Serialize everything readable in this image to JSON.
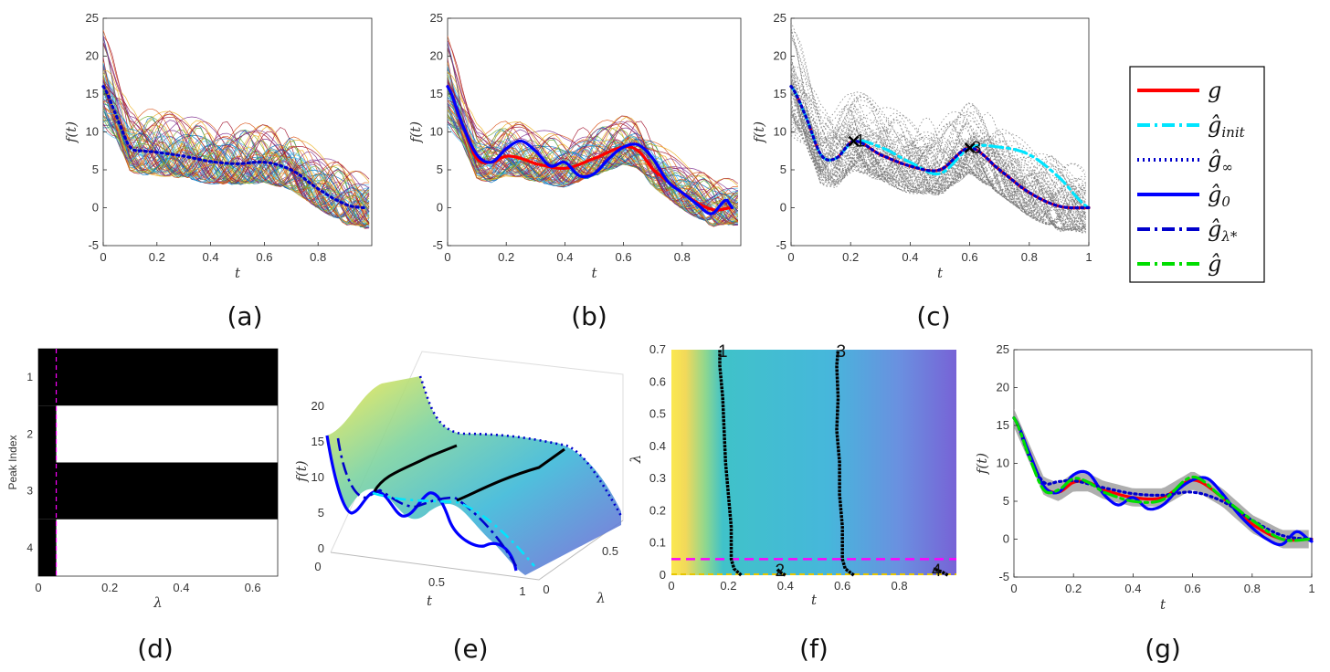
{
  "colors": {
    "g": "#ff0000",
    "g_init": "#00e5ff",
    "g_inf": "#0000cc",
    "g_0": "#0000ff",
    "g_lam": "#0000cc",
    "g_hat": "#00dd00",
    "peak_line": "#ff00ff"
  },
  "legend": {
    "entries": [
      {
        "label": "g",
        "sub": "",
        "style": "solid",
        "color": "#ff0000"
      },
      {
        "label": "ĝ",
        "sub": "init",
        "style": "dashdot",
        "color": "#00e5ff"
      },
      {
        "label": "ĝ",
        "sub": "∞",
        "style": "dotted",
        "color": "#0000cc"
      },
      {
        "label": "ĝ",
        "sub": "0",
        "style": "solid",
        "color": "#0000ff"
      },
      {
        "label": "ĝ",
        "sub": "λ*",
        "style": "dashdot",
        "color": "#0000cc"
      },
      {
        "label": "ĝ",
        "sub": "",
        "style": "dashdot",
        "color": "#00dd00"
      }
    ]
  },
  "captions": [
    "(a)",
    "(b)",
    "(c)",
    "(d)",
    "(e)",
    "(f)",
    "(g)"
  ],
  "chart_data": [
    {
      "panel": "a",
      "type": "line",
      "xlabel": "t",
      "ylabel": "f(t)",
      "xlim": [
        0,
        1
      ],
      "ylim": [
        -5,
        25
      ],
      "xticks": [
        "0",
        "0.2",
        "0.4",
        "0.6",
        "0.8"
      ],
      "yticks": [
        "-5",
        "0",
        "5",
        "10",
        "15",
        "20",
        "25"
      ],
      "series": [
        {
          "style": "dotted",
          "x": [
            0,
            0.05,
            0.1,
            0.15,
            0.2,
            0.3,
            0.4,
            0.5,
            0.6,
            0.7,
            0.8,
            0.9,
            0.97
          ],
          "y": [
            16,
            12,
            8,
            7.5,
            7.3,
            6.8,
            6.1,
            5.8,
            6,
            5,
            2.5,
            0.5,
            0
          ]
        }
      ]
    },
    {
      "panel": "b",
      "type": "line",
      "xlabel": "t",
      "ylabel": "f(t)",
      "xlim": [
        0,
        1
      ],
      "ylim": [
        -5,
        25
      ],
      "xticks": [
        "0",
        "0.2",
        "0.4",
        "0.6",
        "0.8"
      ],
      "yticks": [
        "-5",
        "0",
        "5",
        "10",
        "15",
        "20",
        "25"
      ],
      "series": [
        {
          "style": "solid",
          "x": [
            0,
            0.05,
            0.1,
            0.15,
            0.2,
            0.25,
            0.3,
            0.4,
            0.5,
            0.6,
            0.65,
            0.7,
            0.8,
            0.9,
            0.97
          ],
          "y": [
            16,
            11,
            6.5,
            6,
            6.8,
            6.5,
            5.8,
            5.2,
            6.5,
            8,
            7.5,
            5,
            2,
            -0.2,
            0
          ]
        },
        {
          "style": "solid",
          "x": [
            0,
            0.05,
            0.1,
            0.15,
            0.2,
            0.25,
            0.3,
            0.35,
            0.4,
            0.45,
            0.5,
            0.55,
            0.6,
            0.65,
            0.7,
            0.75,
            0.8,
            0.85,
            0.9,
            0.95,
            0.97
          ],
          "y": [
            16,
            11,
            7,
            6,
            7.8,
            8.8,
            7.5,
            5.5,
            6,
            4.2,
            4.5,
            6.5,
            8,
            8.3,
            6.5,
            3.5,
            2,
            0.5,
            -0.8,
            1,
            0
          ]
        }
      ]
    },
    {
      "panel": "c",
      "type": "line",
      "xlabel": "t",
      "ylabel": "f(t)",
      "xlim": [
        0,
        1
      ],
      "ylim": [
        -5,
        25
      ],
      "xticks": [
        "0",
        "0.2",
        "0.4",
        "0.6",
        "0.8",
        "1"
      ],
      "yticks": [
        "-5",
        "0",
        "5",
        "10",
        "15",
        "20",
        "25"
      ],
      "annotations": [
        {
          "text": "1",
          "x": 0.21,
          "y": 8.8
        },
        {
          "text": "3",
          "x": 0.6,
          "y": 7.9
        }
      ],
      "series": [
        {
          "style": "solid",
          "x": [
            0,
            0.05,
            0.1,
            0.15,
            0.21,
            0.3,
            0.4,
            0.5,
            0.6,
            0.7,
            0.8,
            0.9,
            1
          ],
          "y": [
            16,
            12,
            7,
            6.5,
            8.8,
            7,
            5.5,
            5,
            7.9,
            5,
            2,
            0.2,
            0
          ]
        },
        {
          "style": "dashdot",
          "x": [
            0,
            0.05,
            0.1,
            0.15,
            0.21,
            0.3,
            0.4,
            0.5,
            0.6,
            0.7,
            0.8,
            0.9,
            1
          ],
          "y": [
            16,
            12,
            7,
            6.5,
            8.8,
            8,
            6,
            4.5,
            7.9,
            8,
            7,
            4,
            0
          ]
        },
        {
          "style": "dotted",
          "x": [
            0,
            0.05,
            0.1,
            0.15,
            0.21,
            0.3,
            0.4,
            0.5,
            0.6,
            0.7,
            0.8,
            0.9,
            1
          ],
          "y": [
            16,
            12,
            7,
            6.5,
            8.8,
            7,
            5.5,
            5,
            7.9,
            5,
            2,
            0.2,
            0
          ]
        }
      ]
    },
    {
      "panel": "d",
      "type": "heatmap",
      "xlabel": "λ",
      "ylabel": "Peak Index",
      "xlim": [
        0,
        0.67
      ],
      "xticks": [
        "0",
        "0.2",
        "0.4",
        "0.6"
      ],
      "yticks": [
        "1",
        "2",
        "3",
        "4"
      ],
      "rows": [
        {
          "peak": 1,
          "black_until": 0.67
        },
        {
          "peak": 2,
          "black_until": 0.05
        },
        {
          "peak": 3,
          "black_until": 0.67
        },
        {
          "peak": 4,
          "black_until": 0.05
        }
      ],
      "lambda_star": 0.05
    },
    {
      "panel": "e",
      "type": "area",
      "xlabel": "t",
      "ylabel": "f(t)",
      "zlabel": "λ",
      "zticks": [
        "0",
        "5",
        "10",
        "15",
        "20"
      ],
      "xticks": [
        "0",
        "0.5",
        "1"
      ],
      "lticks": [
        "0",
        "0.5"
      ]
    },
    {
      "panel": "f",
      "type": "heatmap",
      "xlabel": "t",
      "ylabel": "λ",
      "xlim": [
        0,
        1
      ],
      "ylim": [
        0,
        0.7
      ],
      "xticks": [
        "0",
        "0.2",
        "0.4",
        "0.6",
        "0.8"
      ],
      "yticks": [
        "0",
        "0.1",
        "0.2",
        "0.3",
        "0.4",
        "0.5",
        "0.6",
        "0.7"
      ],
      "lambda_star": 0.05,
      "ridges": [
        {
          "label": "1",
          "t": [
            0.245,
            0.22,
            0.21,
            0.21,
            0.2,
            0.19,
            0.185,
            0.18,
            0.17,
            0.17
          ],
          "lambda": [
            0,
            0.02,
            0.05,
            0.15,
            0.25,
            0.35,
            0.45,
            0.55,
            0.65,
            0.7
          ]
        },
        {
          "label": "2",
          "t": [
            0.4,
            0.38,
            0.37
          ],
          "lambda": [
            0,
            0.01,
            0.02
          ]
        },
        {
          "label": "3",
          "t": [
            0.64,
            0.61,
            0.6,
            0.6,
            0.59,
            0.59,
            0.58,
            0.585,
            0.58,
            0.585
          ],
          "lambda": [
            0,
            0.02,
            0.05,
            0.15,
            0.25,
            0.35,
            0.45,
            0.55,
            0.65,
            0.7
          ]
        },
        {
          "label": "4",
          "t": [
            0.97,
            0.95,
            0.92
          ],
          "lambda": [
            0,
            0.01,
            0.02
          ]
        }
      ]
    },
    {
      "panel": "g",
      "type": "line",
      "xlabel": "t",
      "ylabel": "f(t)",
      "xlim": [
        0,
        1
      ],
      "ylim": [
        -5,
        25
      ],
      "xticks": [
        "0",
        "0.2",
        "0.4",
        "0.6",
        "0.8",
        "1"
      ],
      "yticks": [
        "-5",
        "0",
        "5",
        "10",
        "15",
        "20",
        "25"
      ],
      "series": [
        {
          "style": "solid",
          "color": "#ff0000",
          "x": [
            0,
            0.05,
            0.1,
            0.15,
            0.2,
            0.25,
            0.3,
            0.4,
            0.5,
            0.6,
            0.7,
            0.8,
            0.9,
            1
          ],
          "y": [
            16,
            11.5,
            7,
            6.2,
            7.5,
            7.5,
            6.5,
            5.5,
            5.5,
            7.8,
            5.5,
            2,
            0,
            0
          ]
        },
        {
          "style": "solid",
          "color": "#0000ff",
          "x": [
            0,
            0.05,
            0.1,
            0.15,
            0.2,
            0.25,
            0.3,
            0.35,
            0.4,
            0.45,
            0.5,
            0.55,
            0.6,
            0.65,
            0.7,
            0.75,
            0.8,
            0.85,
            0.9,
            0.95,
            1
          ],
          "y": [
            16,
            11.5,
            7,
            6.2,
            8.5,
            8.7,
            6,
            4.5,
            5.5,
            4,
            4.5,
            6.5,
            7.8,
            8,
            6,
            3.5,
            1.5,
            0,
            -0.7,
            1,
            -0.3
          ]
        },
        {
          "style": "dotted",
          "color": "#0000cc",
          "x": [
            0,
            0.05,
            0.1,
            0.15,
            0.2,
            0.3,
            0.4,
            0.5,
            0.6,
            0.7,
            0.8,
            0.9,
            1
          ],
          "y": [
            16,
            11,
            7.5,
            7.6,
            7.7,
            6.8,
            6,
            5.8,
            6.2,
            5,
            2.5,
            0.5,
            0
          ]
        },
        {
          "style": "dashdot",
          "color": "#00dd00",
          "x": [
            0,
            0.05,
            0.1,
            0.15,
            0.2,
            0.25,
            0.3,
            0.4,
            0.5,
            0.6,
            0.7,
            0.8,
            0.9,
            1
          ],
          "y": [
            16,
            11,
            6.5,
            6.5,
            8,
            7.5,
            6.2,
            5,
            5.2,
            8.2,
            5.5,
            2.5,
            0,
            0
          ]
        }
      ]
    }
  ]
}
